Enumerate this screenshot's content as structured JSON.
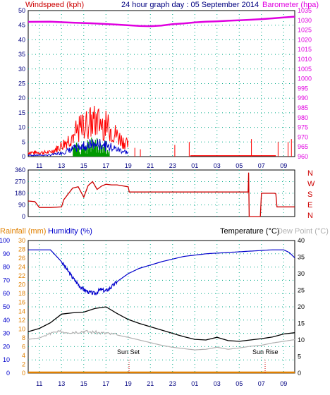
{
  "header": {
    "title": "24 hour graph day : 05 September 2014"
  },
  "colors": {
    "wind": "#ff0000",
    "gust_avg": "#0000cc",
    "direction_green": "#009900",
    "barometer": "#e000e0",
    "axis_text": "#000080",
    "grid": "#00aa88",
    "rain": "#e08000",
    "humidity": "#0000cc",
    "temperature": "#000000",
    "dewpoint": "#b0b0b0",
    "direction": "#cc0000"
  },
  "x_labels": [
    "11",
    "13",
    "15",
    "17",
    "19",
    "21",
    "23",
    "01",
    "03",
    "05",
    "07",
    "09"
  ],
  "chart_data": [
    {
      "type": "line",
      "title": "Windspeed (kph)",
      "ylabel": "Windspeed (kph)",
      "ylabel_right": "Barometer (hpa)",
      "ylim": [
        0,
        50
      ],
      "ylim_right": [
        960,
        1035
      ],
      "yticks": [
        0,
        5,
        10,
        15,
        20,
        25,
        30,
        35,
        40,
        45,
        50
      ],
      "yticks_right": [
        960,
        965,
        970,
        975,
        980,
        985,
        990,
        995,
        1000,
        1005,
        1010,
        1015,
        1020,
        1025,
        1030,
        1035
      ],
      "series": [
        {
          "axis": "right",
          "x": [
            0,
            2,
            4,
            6,
            8,
            10,
            11,
            12,
            13,
            14,
            15,
            16,
            17,
            18,
            19,
            20,
            21,
            22,
            23,
            24
          ],
          "values": [
            1029.2,
            1029.3,
            1028.8,
            1028.4,
            1027.8,
            1027.1,
            1027.0,
            1027.3,
            1028.0,
            1028.4,
            1028.9,
            1029.3,
            1029.5,
            1029.8,
            1030.0,
            1030.3,
            1030.6,
            1031.0,
            1031.5,
            1031.9
          ]
        }
      ],
      "wind_bursts_kph": {
        "start_hour": 0,
        "end_hour": 9,
        "peak": 17,
        "peak_hour": 6
      }
    },
    {
      "type": "line",
      "title": "Wind direction",
      "ylim": [
        0,
        360
      ],
      "yticks": [
        0,
        90,
        180,
        270,
        360
      ],
      "compass": [
        "N",
        "W",
        "S",
        "E",
        "N"
      ],
      "series": [
        {
          "x": [
            0,
            0.6,
            1,
            2,
            3,
            3.2,
            4,
            4.5,
            5,
            5.4,
            5.8,
            6.2,
            6.6,
            7,
            7.5,
            8,
            9,
            9.1,
            14,
            16,
            19.8,
            19.85,
            19.9,
            20.9,
            21,
            22.2,
            22.3,
            22.4,
            24
          ],
          "values": [
            120,
            115,
            70,
            70,
            75,
            130,
            220,
            230,
            150,
            240,
            270,
            210,
            235,
            250,
            245,
            245,
            230,
            190,
            190,
            190,
            190,
            340,
            0,
            0,
            180,
            180,
            175,
            75,
            75
          ]
        }
      ]
    },
    {
      "type": "line",
      "ylabel": "Rainfall (mm)",
      "ylabel_humidity": "Humidity (%)",
      "ylabel_right": "Temperature (°C)",
      "ylabel_dew": "Dew Point (°C)",
      "ylim": [
        0,
        100
      ],
      "ylim_rain": [
        0,
        30
      ],
      "ylim_right": [
        0,
        40
      ],
      "yticks": [
        0,
        10,
        20,
        30,
        40,
        50,
        60,
        70,
        80,
        90,
        100
      ],
      "yticks_rain": [
        0,
        2,
        4,
        6,
        8,
        10,
        12,
        14,
        16,
        18,
        20,
        22,
        24,
        26,
        28,
        30
      ],
      "yticks_right": [
        0,
        5,
        10,
        15,
        20,
        25,
        30,
        35,
        40
      ],
      "annotations": [
        "Sun Set",
        "Sun Rise"
      ],
      "series": [
        {
          "name": "humidity",
          "axis": "left",
          "x": [
            0,
            2,
            3,
            3.5,
            4,
            4.5,
            5,
            5.5,
            6,
            6.5,
            7,
            7.5,
            8,
            9,
            10,
            12,
            14,
            16,
            18,
            20,
            22,
            23,
            23.5,
            24
          ],
          "values": [
            93,
            93,
            84,
            78,
            72,
            67,
            63,
            61,
            60,
            63,
            62,
            65,
            69,
            75,
            79,
            84,
            88,
            90,
            91,
            92,
            93,
            93,
            91,
            87
          ]
        },
        {
          "name": "temperature",
          "axis": "right",
          "x": [
            0,
            1,
            2,
            3,
            4,
            5,
            6,
            7,
            8,
            9,
            10,
            11,
            12,
            13,
            14,
            15,
            16,
            17,
            18,
            19,
            20,
            21,
            22,
            23,
            24
          ],
          "values": [
            12.5,
            13.5,
            15.2,
            17.8,
            18.2,
            18.4,
            19.5,
            20.0,
            18.0,
            16.2,
            15.0,
            14.0,
            13.0,
            12.0,
            11.0,
            10.2,
            10.0,
            10.8,
            9.8,
            9.6,
            10.0,
            10.4,
            10.9,
            11.8,
            12.2
          ]
        },
        {
          "name": "dewpoint",
          "axis": "right",
          "x": [
            0,
            1,
            2,
            3,
            4,
            5,
            6,
            7,
            8,
            9,
            10,
            11,
            12,
            13,
            14,
            15,
            16,
            17,
            18,
            19,
            20,
            21,
            22,
            23,
            24
          ],
          "values": [
            10.2,
            10.6,
            12.0,
            12.5,
            12.4,
            12.6,
            12.3,
            12.0,
            11.5,
            10.8,
            10.0,
            9.2,
            8.4,
            7.8,
            7.4,
            7.0,
            7.2,
            7.8,
            7.2,
            7.6,
            8.1,
            8.4,
            9.1,
            9.6,
            10.1
          ]
        },
        {
          "name": "rainfall",
          "axis": "rain",
          "x": [
            0,
            24
          ],
          "values": [
            0,
            0
          ]
        }
      ]
    }
  ]
}
